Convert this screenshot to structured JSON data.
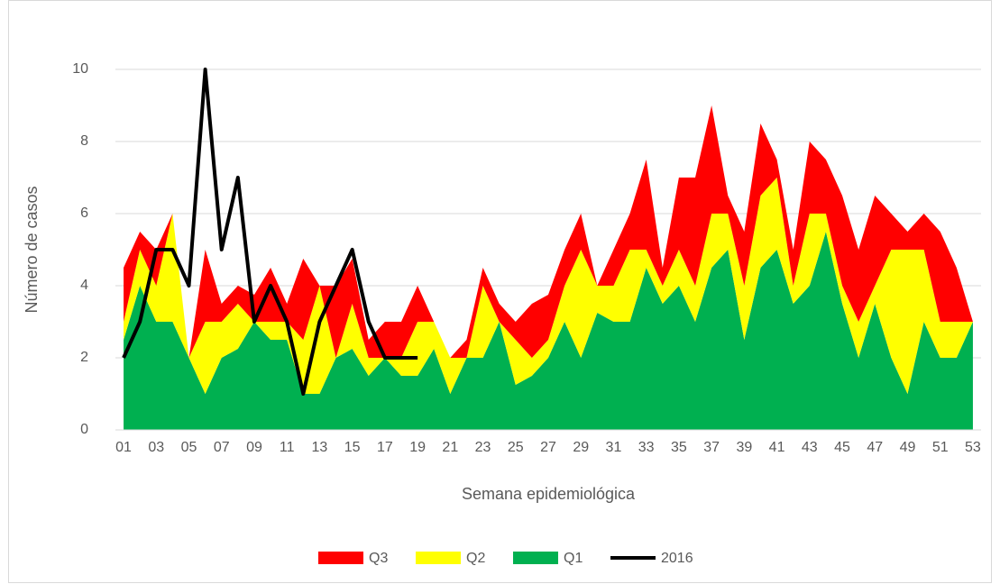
{
  "chart_data": {
    "type": "area",
    "x_label": "Semana epidemiológica",
    "y_label": "Número de casos",
    "categories": [
      "01",
      null,
      "03",
      null,
      "05",
      null,
      "07",
      null,
      "09",
      null,
      "11",
      null,
      "13",
      null,
      "15",
      null,
      "17",
      null,
      "19",
      null,
      "21",
      null,
      "23",
      null,
      "25",
      null,
      "27",
      null,
      "29",
      null,
      "31",
      null,
      "33",
      null,
      "35",
      null,
      "37",
      null,
      "39",
      null,
      "41",
      null,
      "43",
      null,
      "45",
      null,
      "47",
      null,
      "49",
      null,
      "51",
      null,
      "53"
    ],
    "series": [
      {
        "name": "Q1",
        "color": "#00b050",
        "values": [
          2.5,
          4,
          3,
          3,
          2,
          1,
          2,
          2.25,
          3,
          2.5,
          2.5,
          1,
          1,
          2,
          2.25,
          1.5,
          2,
          1.5,
          1.5,
          2.25,
          1,
          2,
          2,
          3,
          1.25,
          1.5,
          2,
          3,
          2,
          3.25,
          3,
          3,
          4.5,
          3.5,
          4,
          3,
          4.5,
          5,
          2.5,
          4.5,
          5,
          3.5,
          4,
          5.5,
          3.5,
          2,
          3.5,
          2,
          1,
          3,
          2,
          2,
          3
        ]
      },
      {
        "name": "Q2",
        "color": "#ffff00",
        "values": [
          0.5,
          1,
          1,
          3,
          0,
          2,
          1,
          1.25,
          0,
          0.5,
          0.5,
          1.5,
          3,
          0,
          1.25,
          0.5,
          0,
          0.5,
          1.5,
          0.75,
          1,
          0,
          2,
          0,
          1.25,
          0.5,
          0.5,
          1,
          3,
          0.75,
          1,
          2,
          0.5,
          0.5,
          1,
          1,
          1.5,
          1,
          1.5,
          2,
          2,
          0.5,
          2,
          0.5,
          0.5,
          1,
          0.5,
          3,
          4,
          2,
          1,
          1,
          0
        ]
      },
      {
        "name": "Q3",
        "color": "#ff0000",
        "values": [
          1.5,
          0.5,
          1,
          0,
          0,
          2,
          0.5,
          0.5,
          0.75,
          1.5,
          0.5,
          2.25,
          0,
          2,
          1.25,
          0.5,
          1,
          1,
          1,
          0,
          0,
          0.5,
          0.5,
          0.5,
          0.5,
          1.5,
          1.25,
          1,
          1,
          0,
          1,
          1,
          2.5,
          0.5,
          2,
          3,
          3,
          0.5,
          1.5,
          2,
          0.5,
          1,
          2,
          1.5,
          2.5,
          2,
          2.5,
          1,
          0.5,
          1,
          2.5,
          1.5,
          0
        ]
      },
      {
        "name": "2016",
        "color": "#000000",
        "type": "line",
        "values": [
          2,
          3,
          5,
          5,
          4,
          10,
          5,
          7,
          3,
          4,
          3,
          1,
          3,
          4,
          5,
          3,
          2,
          2,
          2,
          null,
          null,
          null,
          null,
          null,
          null,
          null,
          null,
          null,
          null,
          null,
          null,
          null,
          null,
          null,
          null,
          null,
          null,
          null,
          null,
          null,
          null,
          null,
          null,
          null,
          null,
          null,
          null,
          null,
          null,
          null,
          null,
          null,
          null
        ]
      }
    ],
    "ylim": [
      0,
      11
    ],
    "yticks": [
      0,
      2,
      4,
      6,
      8,
      10
    ],
    "grid": true,
    "legend": "bottom"
  }
}
